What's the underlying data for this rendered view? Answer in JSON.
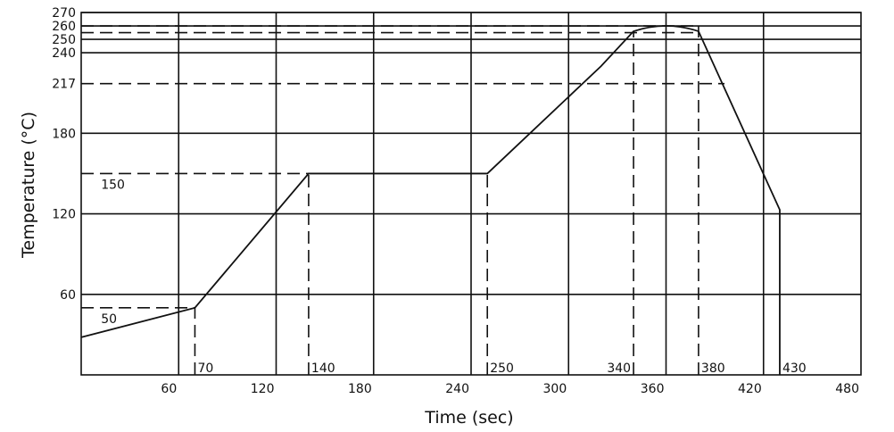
{
  "chart_data": {
    "type": "line",
    "title": "",
    "xlabel": "Time (sec)",
    "ylabel": "Temperature (°C)",
    "xlim": [
      0,
      480
    ],
    "ylim": [
      0,
      270
    ],
    "grid": true,
    "x_ticks": [
      60,
      120,
      180,
      240,
      300,
      360,
      420,
      480
    ],
    "y_ticks": [
      60,
      120,
      180,
      217,
      240,
      250,
      260,
      270
    ],
    "extra_vertical_lines": [
      60,
      120,
      180,
      240,
      300,
      360,
      420
    ],
    "series": [
      {
        "x": [
          0,
          70,
          140,
          250,
          320,
          340,
          350,
          360,
          370,
          380,
          430,
          430
        ],
        "y": [
          28,
          50,
          150,
          150,
          230,
          256,
          260,
          260,
          260,
          256,
          123,
          0
        ]
      }
    ],
    "guides": [
      {
        "orientation": "horizontal",
        "y": 50,
        "x_from": 0,
        "x_to": 70
      },
      {
        "orientation": "horizontal",
        "y": 150,
        "x_from": 0,
        "x_to": 140
      },
      {
        "orientation": "horizontal",
        "y": 217,
        "x_from": 0,
        "x_to": 396
      },
      {
        "orientation": "horizontal",
        "y": 255,
        "x_from": 0,
        "x_to": 380
      },
      {
        "orientation": "horizontal",
        "y": 260,
        "x_from": 0,
        "x_to": 380
      },
      {
        "orientation": "vertical",
        "x": 70,
        "y_from": 0,
        "y_to": 50
      },
      {
        "orientation": "vertical",
        "x": 140,
        "y_from": 0,
        "y_to": 150
      },
      {
        "orientation": "vertical",
        "x": 250,
        "y_from": 0,
        "y_to": 150
      },
      {
        "orientation": "vertical",
        "x": 340,
        "y_from": 0,
        "y_to": 256
      },
      {
        "orientation": "vertical",
        "x": 380,
        "y_from": 0,
        "y_to": 260
      }
    ],
    "annotations": [
      {
        "text": "50",
        "x": 10,
        "y": 50,
        "anchor": "below-right"
      },
      {
        "text": "150",
        "x": 10,
        "y": 150,
        "anchor": "below-right"
      },
      {
        "text": "70",
        "x": 70,
        "y": 0,
        "anchor": "above-right"
      },
      {
        "text": "140",
        "x": 140,
        "y": 0,
        "anchor": "above-right"
      },
      {
        "text": "250",
        "x": 250,
        "y": 0,
        "anchor": "above-right"
      },
      {
        "text": "340",
        "x": 340,
        "y": 0,
        "anchor": "above-left"
      },
      {
        "text": "380",
        "x": 380,
        "y": 0,
        "anchor": "above-right"
      },
      {
        "text": "430",
        "x": 430,
        "y": 0,
        "anchor": "above-right"
      }
    ]
  }
}
